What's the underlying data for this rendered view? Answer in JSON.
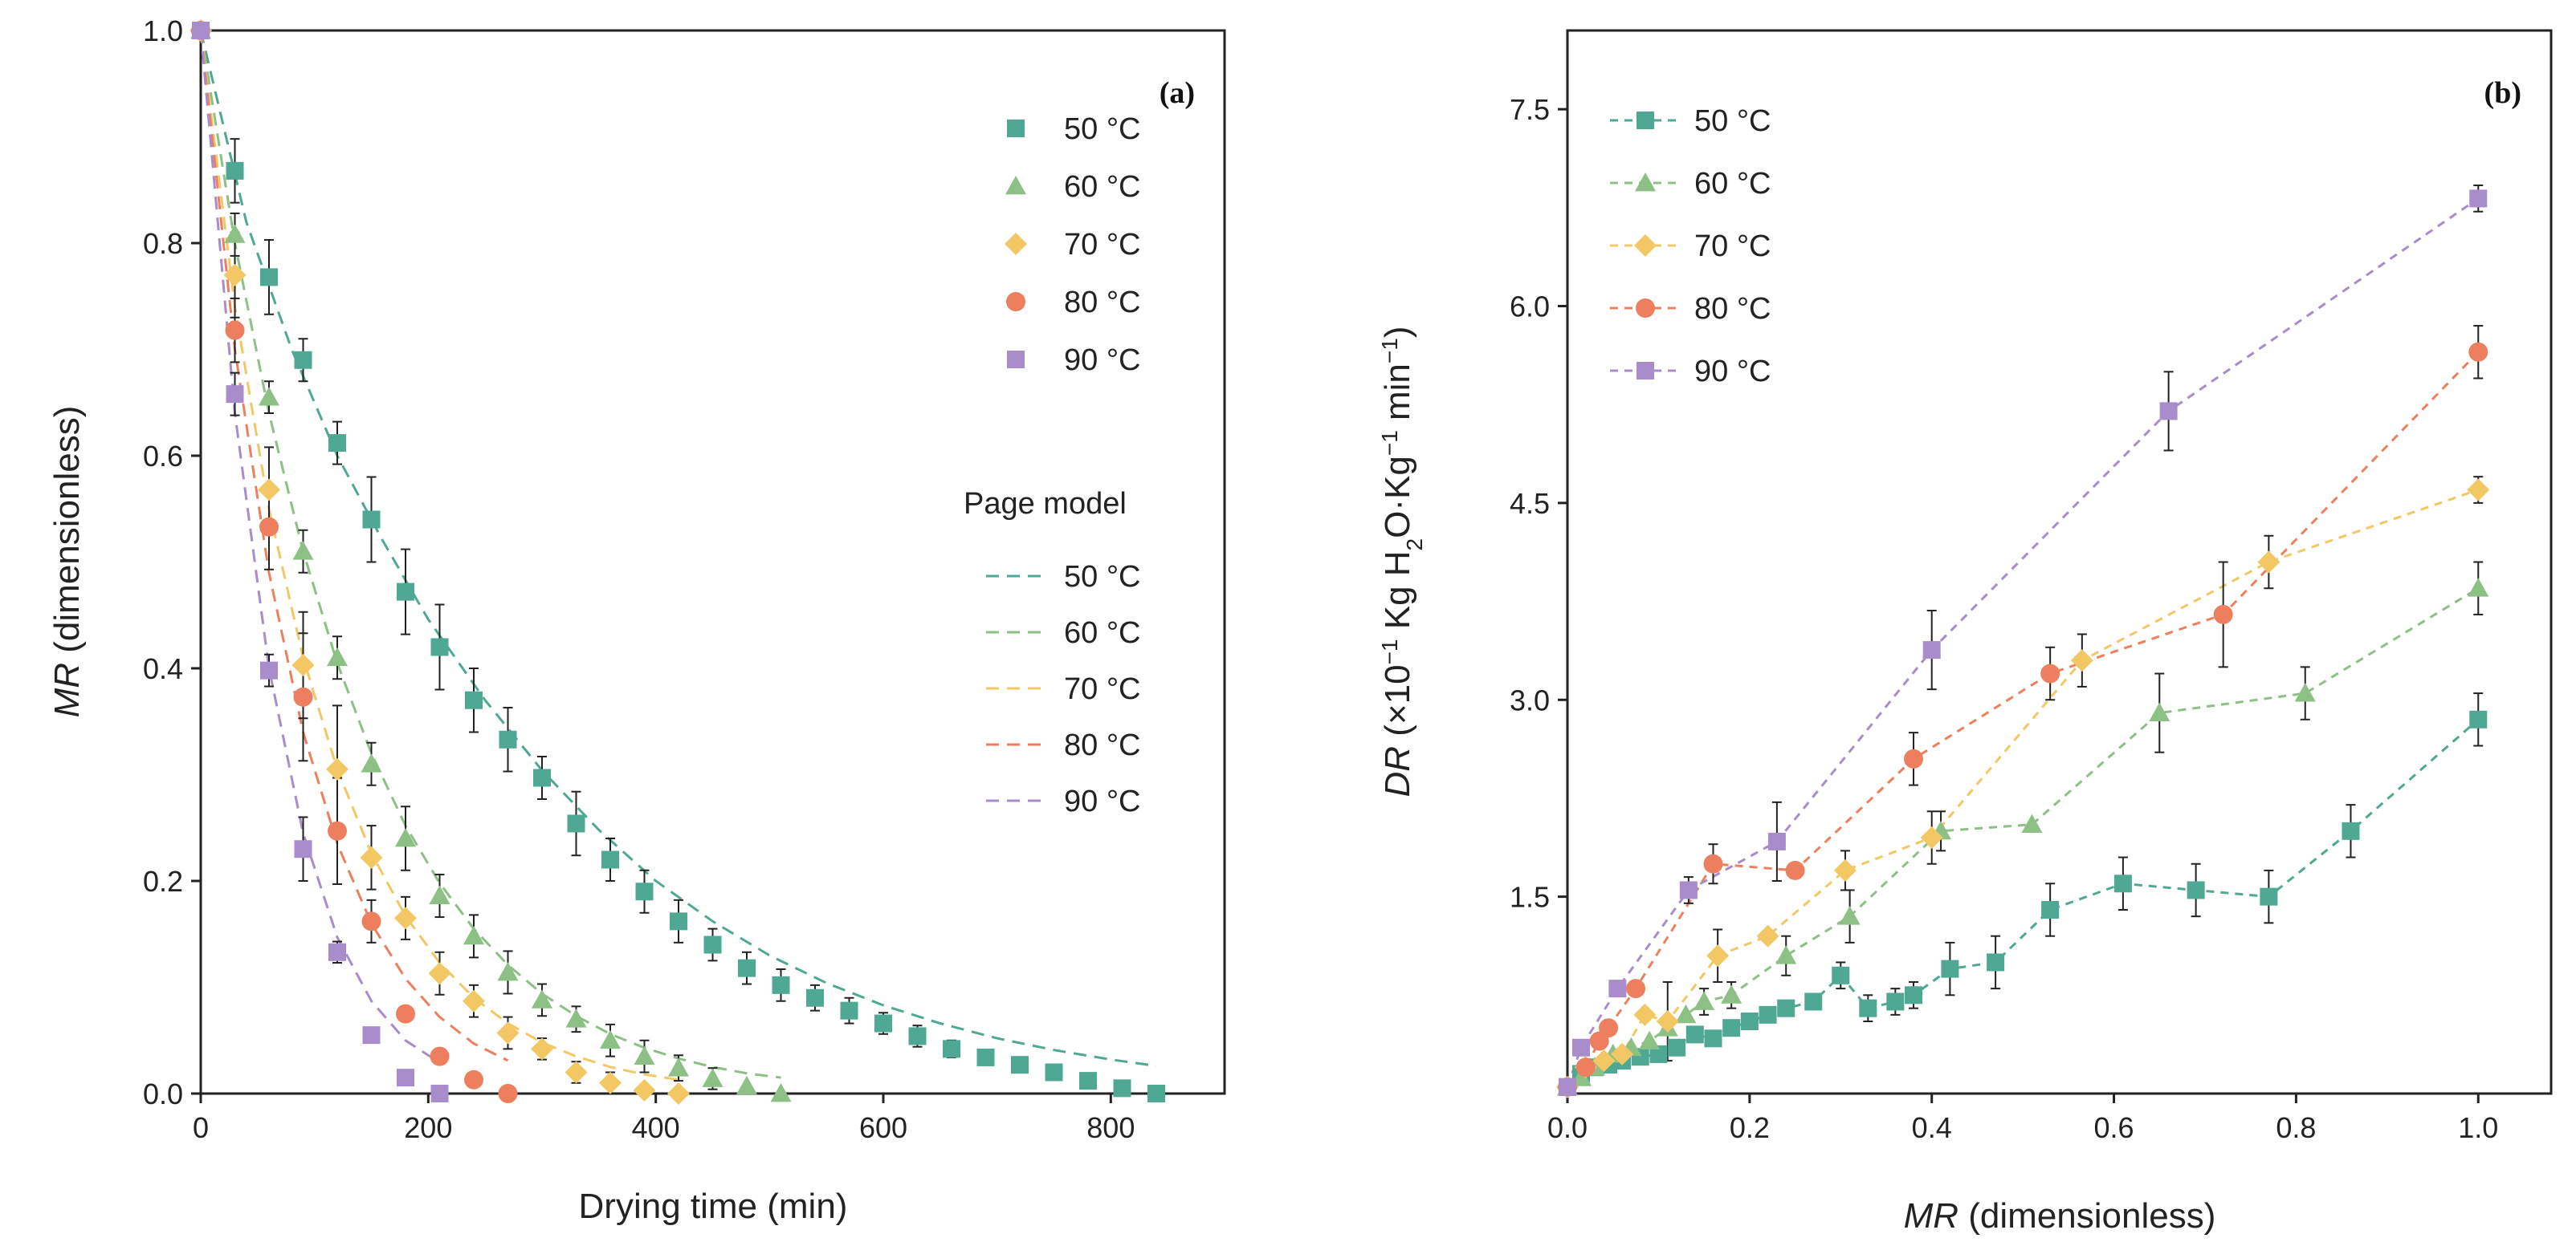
{
  "chart_data": [
    {
      "type": "scatter",
      "panel_label": "(a)",
      "xlabel": "Drying time (min)",
      "ylabel_italic": "MR",
      "ylabel_rest": " (dimensionless)",
      "xlim": [
        0,
        900
      ],
      "ylim": [
        0,
        1.0
      ],
      "xticks": [
        0,
        200,
        400,
        600,
        800
      ],
      "yticks": [
        0.0,
        0.2,
        0.4,
        0.6,
        0.8,
        1.0
      ],
      "ytick_labels": [
        "0.0",
        "0.2",
        "0.4",
        "0.6",
        "0.8",
        "1.0"
      ],
      "legend_position": "right",
      "model_title": "Page model",
      "series": [
        {
          "name": "50 °C",
          "color": "#4fa894",
          "marker": "square",
          "x": [
            0,
            30,
            60,
            90,
            120,
            150,
            180,
            210,
            240,
            270,
            300,
            330,
            360,
            390,
            420,
            450,
            480,
            510,
            540,
            570,
            600,
            630,
            660,
            690,
            720,
            750,
            780,
            810,
            840
          ],
          "y": [
            1.0,
            0.868,
            0.768,
            0.69,
            0.612,
            0.54,
            0.472,
            0.42,
            0.37,
            0.333,
            0.297,
            0.254,
            0.22,
            0.19,
            0.162,
            0.14,
            0.118,
            0.102,
            0.09,
            0.078,
            0.066,
            0.054,
            0.042,
            0.034,
            0.027,
            0.02,
            0.012,
            0.005,
            0.0
          ],
          "err": [
            0,
            0.03,
            0.035,
            0.02,
            0.02,
            0.04,
            0.04,
            0.04,
            0.03,
            0.03,
            0.02,
            0.03,
            0.02,
            0.02,
            0.02,
            0.015,
            0.015,
            0.015,
            0.012,
            0.012,
            0.01,
            0.01,
            0.008,
            0,
            0,
            0,
            0,
            0,
            0
          ],
          "model_x": [
            0,
            40,
            80,
            120,
            160,
            200,
            250,
            300,
            350,
            400,
            450,
            500,
            550,
            600,
            650,
            700,
            750,
            800,
            840
          ],
          "model_y": [
            1.0,
            0.82,
            0.7,
            0.6,
            0.52,
            0.446,
            0.37,
            0.304,
            0.248,
            0.2,
            0.162,
            0.13,
            0.104,
            0.083,
            0.066,
            0.052,
            0.041,
            0.032,
            0.026
          ]
        },
        {
          "name": "60 °C",
          "color": "#8cc084",
          "marker": "triangle",
          "x": [
            0,
            30,
            60,
            90,
            120,
            150,
            180,
            210,
            240,
            270,
            300,
            330,
            360,
            390,
            420,
            450,
            480,
            510
          ],
          "y": [
            1.0,
            0.808,
            0.655,
            0.51,
            0.41,
            0.31,
            0.24,
            0.186,
            0.148,
            0.114,
            0.088,
            0.07,
            0.05,
            0.035,
            0.024,
            0.014,
            0.007,
            0.0
          ],
          "err": [
            0,
            0.02,
            0.015,
            0.02,
            0.02,
            0.02,
            0.03,
            0.02,
            0.02,
            0.02,
            0.015,
            0.012,
            0.015,
            0.015,
            0.012,
            0.01,
            0,
            0
          ],
          "model_x": [
            0,
            30,
            60,
            90,
            120,
            150,
            180,
            210,
            240,
            270,
            300,
            330,
            360,
            390,
            420,
            450,
            480,
            510
          ],
          "model_y": [
            1.0,
            0.8,
            0.64,
            0.51,
            0.405,
            0.32,
            0.252,
            0.198,
            0.155,
            0.121,
            0.094,
            0.073,
            0.056,
            0.043,
            0.033,
            0.025,
            0.019,
            0.015
          ]
        },
        {
          "name": "70 °C",
          "color": "#f3c864",
          "marker": "diamond",
          "x": [
            0,
            30,
            60,
            90,
            120,
            150,
            180,
            210,
            240,
            270,
            300,
            330,
            360,
            390,
            420
          ],
          "y": [
            1.0,
            0.77,
            0.568,
            0.403,
            0.305,
            0.222,
            0.165,
            0.113,
            0.087,
            0.057,
            0.042,
            0.02,
            0.01,
            0.003,
            0.0
          ],
          "err": [
            0,
            0.04,
            0.04,
            0.05,
            0.06,
            0.03,
            0.02,
            0.02,
            0.015,
            0.015,
            0.01,
            0.01,
            0.01,
            0,
            0
          ],
          "model_x": [
            0,
            30,
            60,
            90,
            120,
            150,
            180,
            210,
            240,
            270,
            300,
            330,
            360,
            390,
            420
          ],
          "model_y": [
            1.0,
            0.74,
            0.55,
            0.41,
            0.305,
            0.226,
            0.167,
            0.123,
            0.09,
            0.066,
            0.048,
            0.035,
            0.025,
            0.018,
            0.013
          ]
        },
        {
          "name": "80 °C",
          "color": "#ee7f5e",
          "marker": "circle",
          "x": [
            0,
            30,
            60,
            90,
            120,
            150,
            180,
            210,
            240,
            270
          ],
          "y": [
            1.0,
            0.718,
            0.533,
            0.373,
            0.247,
            0.162,
            0.075,
            0.035,
            0.013,
            0.0
          ],
          "err": [
            0,
            0.03,
            0.04,
            0.06,
            0.05,
            0.02,
            0,
            0,
            0,
            0
          ],
          "model_x": [
            0,
            30,
            60,
            90,
            120,
            150,
            180,
            210,
            240,
            270
          ],
          "model_y": [
            1.0,
            0.7,
            0.49,
            0.34,
            0.235,
            0.16,
            0.108,
            0.072,
            0.047,
            0.031
          ]
        },
        {
          "name": "90 °C",
          "color": "#a88ccc",
          "marker": "square",
          "x": [
            0,
            30,
            60,
            90,
            120,
            150,
            180,
            210
          ],
          "y": [
            1.0,
            0.658,
            0.398,
            0.23,
            0.133,
            0.055,
            0.015,
            0.0
          ],
          "err": [
            0,
            0.02,
            0.015,
            0.03,
            0.01,
            0,
            0,
            0
          ],
          "model_x": [
            0,
            30,
            60,
            90,
            120,
            150,
            180,
            210
          ],
          "model_y": [
            1.0,
            0.64,
            0.4,
            0.245,
            0.147,
            0.087,
            0.05,
            0.029
          ]
        }
      ]
    },
    {
      "type": "line",
      "panel_label": "(b)",
      "xlabel_italic": "MR",
      "xlabel_rest": " (dimensionless)",
      "ylabel_italic": "DR",
      "ylabel_p1": " (×10",
      "ylabel_p1_sup": "−1",
      "ylabel_p2": "  Kg H",
      "ylabel_p2_sub": "2",
      "ylabel_p3": "O·Kg",
      "ylabel_p3_sup": "−1",
      "ylabel_p4": " min",
      "ylabel_p4_sup": "−1",
      "ylabel_p5": ")",
      "xlim": [
        0,
        1.08
      ],
      "ylim": [
        0,
        8.1
      ],
      "xticks": [
        0.0,
        0.2,
        0.4,
        0.6,
        0.8,
        1.0
      ],
      "xtick_labels": [
        "0.0",
        "0.2",
        "0.4",
        "0.6",
        "0.8",
        "1.0"
      ],
      "yticks": [
        1.5,
        3.0,
        4.5,
        6.0,
        7.5
      ],
      "ytick_labels": [
        "1.5",
        "3.0",
        "4.5",
        "6.0",
        "7.5"
      ],
      "legend_position": "top-left",
      "series": [
        {
          "name": "50 °C",
          "color": "#4fa894",
          "marker": "square",
          "x": [
            0.0,
            0.015,
            0.03,
            0.045,
            0.06,
            0.08,
            0.1,
            0.12,
            0.14,
            0.16,
            0.18,
            0.2,
            0.22,
            0.24,
            0.27,
            0.3,
            0.33,
            0.36,
            0.38,
            0.42,
            0.47,
            0.53,
            0.61,
            0.69,
            0.77,
            0.86,
            1.0
          ],
          "y": [
            0.05,
            0.15,
            0.2,
            0.22,
            0.25,
            0.28,
            0.3,
            0.35,
            0.45,
            0.42,
            0.5,
            0.55,
            0.6,
            0.65,
            0.7,
            0.9,
            0.65,
            0.7,
            0.75,
            0.95,
            1.0,
            1.4,
            1.6,
            1.55,
            1.5,
            2.0,
            2.85
          ],
          "err": [
            0,
            0,
            0,
            0,
            0,
            0,
            0,
            0,
            0,
            0,
            0,
            0,
            0,
            0,
            0,
            0.1,
            0.1,
            0.1,
            0.1,
            0.2,
            0.2,
            0.2,
            0.2,
            0.2,
            0.2,
            0.2,
            0.2
          ]
        },
        {
          "name": "60 °C",
          "color": "#8cc084",
          "marker": "triangle",
          "x": [
            0.0,
            0.015,
            0.03,
            0.05,
            0.07,
            0.09,
            0.11,
            0.13,
            0.15,
            0.18,
            0.24,
            0.31,
            0.41,
            0.51,
            0.65,
            0.81,
            1.0
          ],
          "y": [
            0.05,
            0.12,
            0.2,
            0.3,
            0.35,
            0.4,
            0.5,
            0.6,
            0.7,
            0.75,
            1.05,
            1.35,
            2.0,
            2.05,
            2.9,
            3.05,
            3.85
          ],
          "err": [
            0,
            0,
            0,
            0,
            0,
            0,
            0,
            0,
            0.1,
            0.1,
            0.15,
            0.2,
            0.15,
            0,
            0.3,
            0.2,
            0.2
          ]
        },
        {
          "name": "70 °C",
          "color": "#f3c864",
          "marker": "diamond",
          "x": [
            0.0,
            0.02,
            0.04,
            0.06,
            0.085,
            0.11,
            0.165,
            0.22,
            0.305,
            0.4,
            0.565,
            0.77,
            1.0
          ],
          "y": [
            0.05,
            0.2,
            0.25,
            0.3,
            0.6,
            0.55,
            1.05,
            1.2,
            1.7,
            1.95,
            3.3,
            4.05,
            4.6
          ],
          "err": [
            0,
            0,
            0,
            0,
            0,
            0.3,
            0.2,
            0,
            0.15,
            0.2,
            0.2,
            0.2,
            0.1
          ]
        },
        {
          "name": "80 °C",
          "color": "#ee7f5e",
          "marker": "circle",
          "x": [
            0.0,
            0.02,
            0.035,
            0.045,
            0.075,
            0.16,
            0.25,
            0.38,
            0.53,
            0.72,
            1.0
          ],
          "y": [
            0.05,
            0.2,
            0.4,
            0.5,
            0.8,
            1.75,
            1.7,
            2.55,
            3.2,
            3.65,
            5.65
          ],
          "err": [
            0,
            0,
            0,
            0,
            0,
            0.15,
            0,
            0.2,
            0.2,
            0.4,
            0.2
          ]
        },
        {
          "name": "90 °C",
          "color": "#a88ccc",
          "marker": "square",
          "x": [
            0.0,
            0.015,
            0.055,
            0.133,
            0.23,
            0.4,
            0.66,
            1.0
          ],
          "y": [
            0.05,
            0.35,
            0.8,
            1.55,
            1.92,
            3.38,
            5.2,
            6.82
          ],
          "err": [
            0,
            0,
            0,
            0.1,
            0.3,
            0.3,
            0.3,
            0.1
          ]
        }
      ]
    }
  ]
}
